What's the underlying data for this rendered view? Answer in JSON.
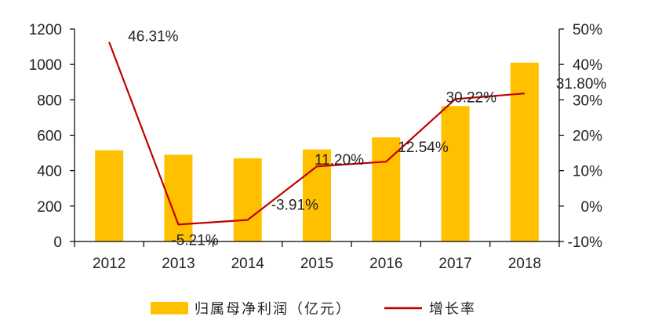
{
  "chart_data": {
    "type": "bar+line",
    "categories": [
      "2012",
      "2013",
      "2014",
      "2015",
      "2016",
      "2017",
      "2018"
    ],
    "series": [
      {
        "name": "归属母净利润（亿元）",
        "type": "bar",
        "axis": "left",
        "color": "#ffc000",
        "values": [
          515,
          490,
          470,
          520,
          588,
          765,
          1010
        ]
      },
      {
        "name": "增长率",
        "type": "line",
        "axis": "right",
        "color": "#c00000",
        "values": [
          46.31,
          -5.21,
          -3.91,
          11.2,
          12.54,
          30.22,
          31.8
        ],
        "labels": [
          "46.31%",
          "-5.21%",
          "-3.91%",
          "11.20%",
          "12.54%",
          "30.22%",
          "31.80%"
        ]
      }
    ],
    "left_axis": {
      "ylim": [
        0,
        1200
      ],
      "ticks": [
        "0",
        "200",
        "400",
        "600",
        "800",
        "1000",
        "1200"
      ]
    },
    "right_axis": {
      "ylim": [
        -10,
        50
      ],
      "ticks": [
        "-10%",
        "0%",
        "10%",
        "20%",
        "30%",
        "40%",
        "50%"
      ]
    },
    "legend": {
      "position": "bottom",
      "bar_label": "归属母净利润（亿元）",
      "line_label": "增长率"
    },
    "grid": false
  }
}
